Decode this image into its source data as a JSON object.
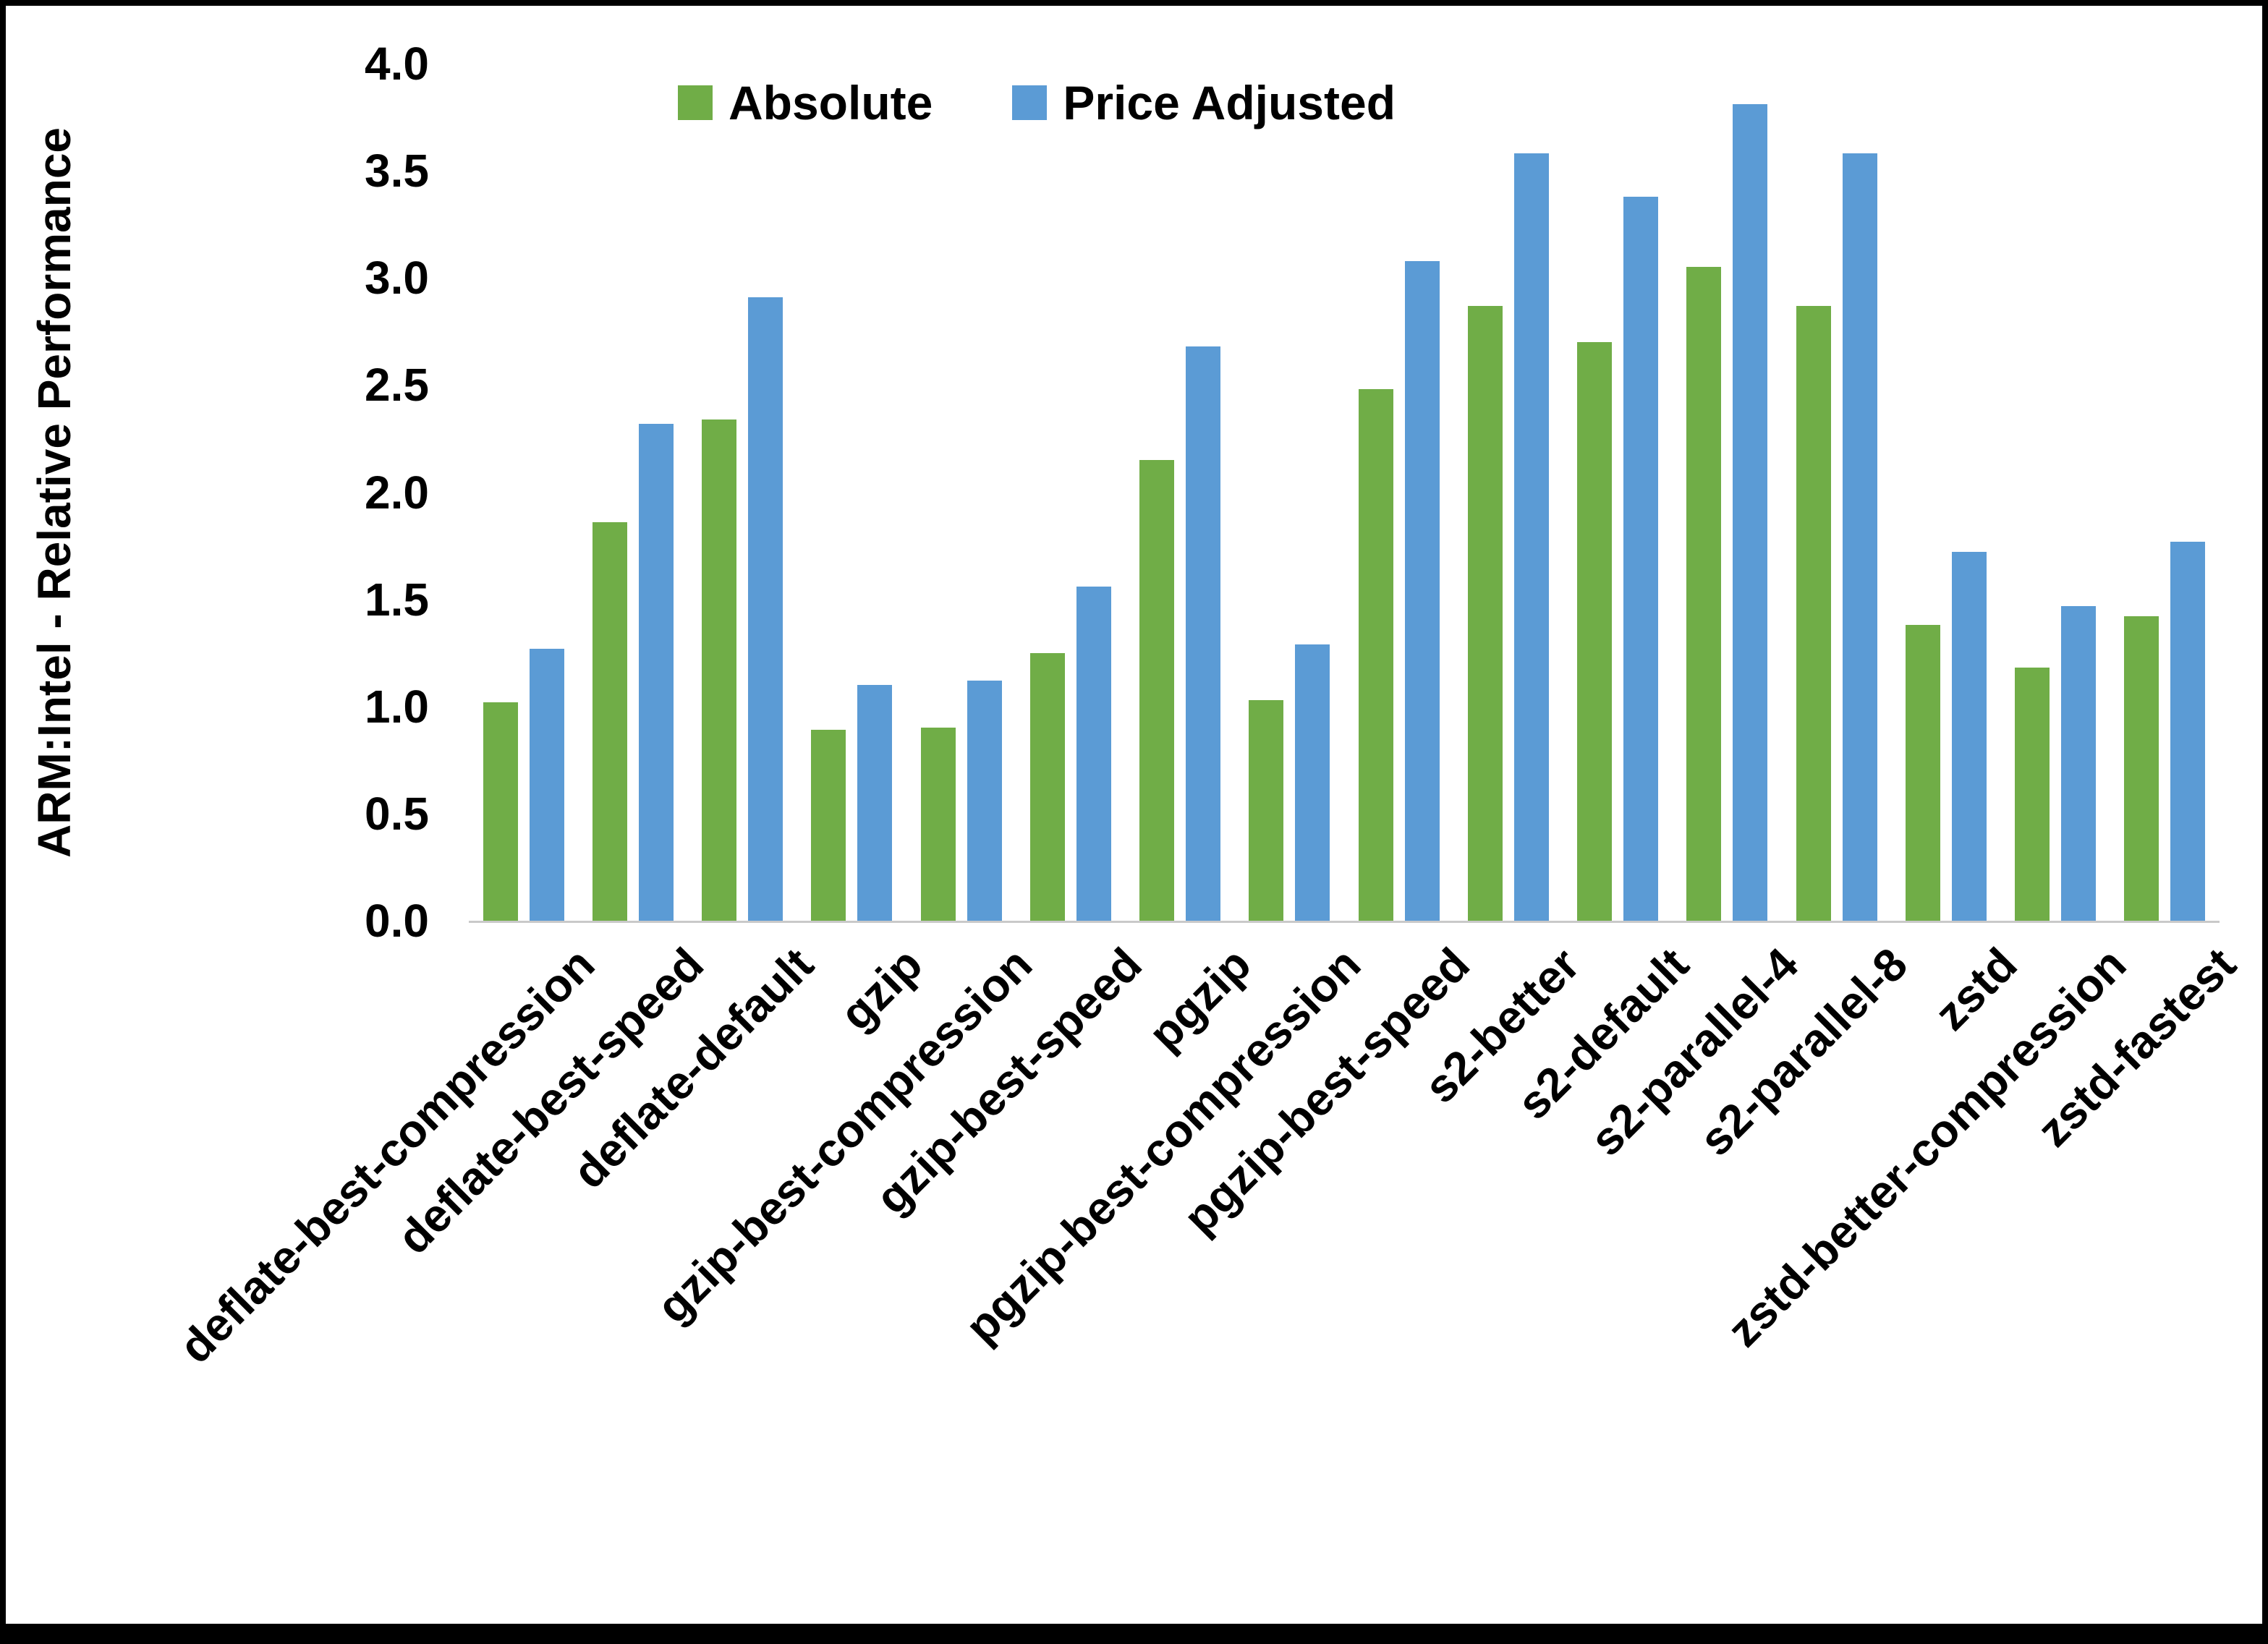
{
  "chart_data": {
    "type": "bar",
    "title": "",
    "xlabel": "",
    "ylabel": "ARM:Intel - Relative Performance",
    "ylim": [
      0.0,
      4.0
    ],
    "ytick_step": 0.5,
    "yticks": [
      "0.0",
      "0.5",
      "1.0",
      "1.5",
      "2.0",
      "2.5",
      "3.0",
      "3.5",
      "4.0"
    ],
    "grid": false,
    "legend_position": "top-center",
    "categories": [
      "deflate-best-compression",
      "deflate-best-speed",
      "deflate-default",
      "gzip",
      "gzip-best-compression",
      "gzip-best-speed",
      "pgzip",
      "pgzip-best-compression",
      "pgzip-best-speed",
      "s2-better",
      "s2-default",
      "s2-parallel-4",
      "s2-parallel-8",
      "zstd",
      "zstd-better-compression",
      "zstd-fastest"
    ],
    "series": [
      {
        "name": "Absolute",
        "color": "#70AD47",
        "values": [
          1.02,
          1.86,
          2.34,
          0.89,
          0.9,
          1.25,
          2.15,
          1.03,
          2.48,
          2.87,
          2.7,
          3.05,
          2.87,
          1.38,
          1.18,
          1.42
        ]
      },
      {
        "name": "Price Adjusted",
        "color": "#5B9BD5",
        "values": [
          1.27,
          2.32,
          2.91,
          1.1,
          1.12,
          1.56,
          2.68,
          1.29,
          3.08,
          3.58,
          3.38,
          3.81,
          3.58,
          1.72,
          1.47,
          1.77
        ]
      }
    ]
  }
}
